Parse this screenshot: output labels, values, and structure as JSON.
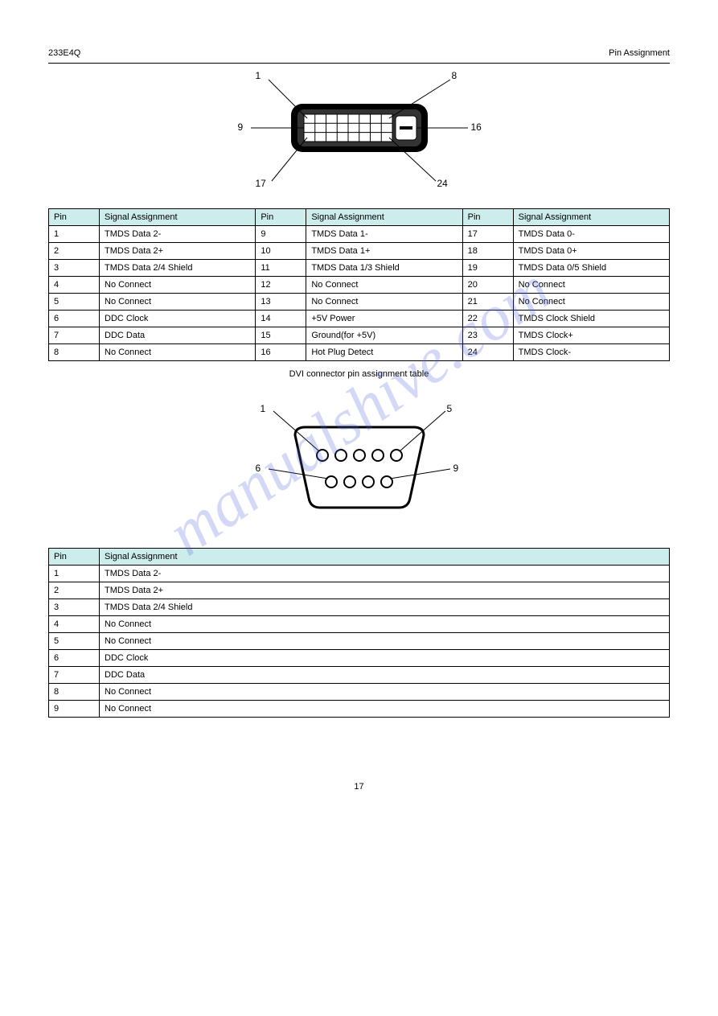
{
  "header": {
    "doc_title": "233E4Q",
    "section_ref": "Pin Assignment"
  },
  "watermark": "manualshive.com",
  "diagrams": {
    "dvi": {
      "labels": {
        "tl": "1",
        "tr": "8",
        "ml": "9",
        "mr": "16",
        "bl": "17",
        "br": "24"
      },
      "outer_fill": "#000000",
      "inner_fill": "#ffffff",
      "line_color": "#000000"
    },
    "serial": {
      "labels": {
        "tl": "1",
        "tr": "5",
        "bl": "6",
        "br": "9"
      },
      "stroke": "#000000",
      "fill": "#ffffff"
    }
  },
  "tables": {
    "dvi": {
      "caption": "DVI connector pin assignment table",
      "headers": [
        "Pin",
        "Signal Assignment",
        "Pin",
        "Signal Assignment",
        "Pin",
        "Signal Assignment"
      ],
      "rows": [
        [
          "1",
          "TMDS Data 2-",
          "9",
          "TMDS Data 1-",
          "17",
          "TMDS Data 0-"
        ],
        [
          "2",
          "TMDS Data 2+",
          "10",
          "TMDS Data 1+",
          "18",
          "TMDS Data 0+"
        ],
        [
          "3",
          "TMDS Data 2/4 Shield",
          "11",
          "TMDS Data 1/3 Shield",
          "19",
          "TMDS Data 0/5 Shield"
        ],
        [
          "4",
          "No Connect",
          "12",
          "No Connect",
          "20",
          "No Connect"
        ],
        [
          "5",
          "No Connect",
          "13",
          "No Connect",
          "21",
          "No Connect"
        ],
        [
          "6",
          "DDC Clock",
          "14",
          "+5V Power",
          "22",
          "TMDS Clock Shield"
        ],
        [
          "7",
          "DDC Data",
          "15",
          "Ground(for +5V)",
          "23",
          "TMDS Clock+"
        ],
        [
          "8",
          "No Connect",
          "16",
          "Hot Plug Detect",
          "24",
          "TMDS Clock-"
        ]
      ]
    },
    "serial": {
      "caption": "",
      "headers": [
        "Pin",
        "Signal Assignment"
      ],
      "rows": [
        [
          "1",
          "TMDS Data 2-"
        ],
        [
          "2",
          "TMDS Data 2+"
        ],
        [
          "3",
          "TMDS Data 2/4 Shield"
        ],
        [
          "4",
          "No Connect"
        ],
        [
          "5",
          "No Connect"
        ],
        [
          "6",
          "DDC Clock"
        ],
        [
          "7",
          "DDC Data"
        ],
        [
          "8",
          "No Connect"
        ],
        [
          "9",
          "No Connect"
        ]
      ]
    }
  },
  "footer": {
    "page": "17"
  }
}
